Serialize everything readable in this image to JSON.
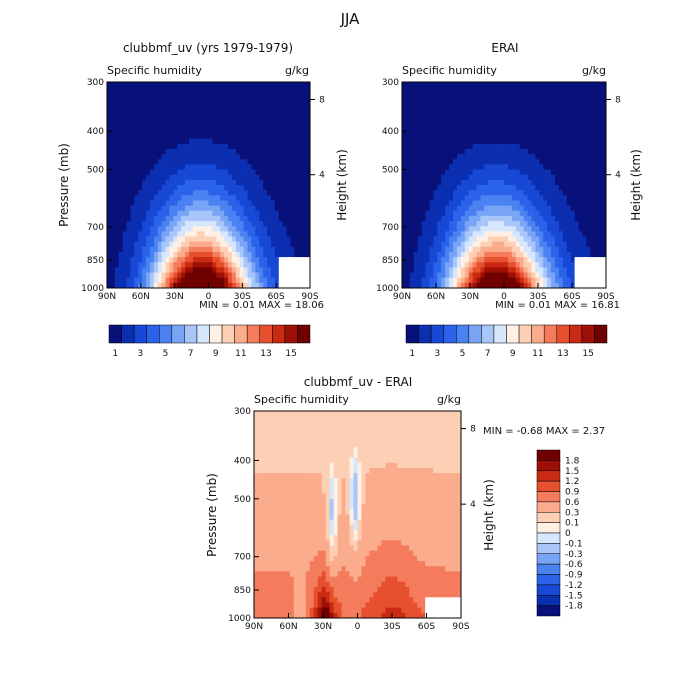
{
  "page_title": "JJA",
  "colors": {
    "model_scale": [
      "#08107a",
      "#0b2fb0",
      "#1749d6",
      "#2a62ea",
      "#4a82f2",
      "#7aa5f6",
      "#a9c6fa",
      "#d6e6fd",
      "#fff0e3",
      "#fdd0b6",
      "#fbac8d",
      "#f47c5c",
      "#e6502f",
      "#c82a12",
      "#9e1007",
      "#6e0000"
    ],
    "diff_scale": [
      "#08107a",
      "#0b2fb0",
      "#1749d6",
      "#2a62ea",
      "#4a82f2",
      "#7aa5f6",
      "#a9c6fa",
      "#d6e6fd",
      "#fff0e3",
      "#fdd0b6",
      "#fbac8d",
      "#f47c5c",
      "#e6502f",
      "#c82a12",
      "#9e1007",
      "#6e0000"
    ]
  },
  "chart_data": [
    {
      "type": "heatmap",
      "title": "clubbmf_uv (yrs 1979-1979)",
      "subtitle_left": "Specific humidity",
      "subtitle_right": "g/kg",
      "ylabel": "Pressure (mb)",
      "y2label": "Height (km)",
      "x_ticks": [
        "90N",
        "60N",
        "30N",
        "0",
        "30S",
        "60S",
        "90S"
      ],
      "x_values": [
        90,
        60,
        30,
        0,
        -30,
        -60,
        -90
      ],
      "y_ticks": [
        "300",
        "400",
        "500",
        "700",
        "850",
        "1000"
      ],
      "y_values": [
        300,
        400,
        500,
        700,
        850,
        1000
      ],
      "y2_ticks": [
        "8",
        "4"
      ],
      "ylim": [
        1000,
        300
      ],
      "xlim": [
        90,
        -90
      ],
      "stats": "MIN =    0.01   MAX =   18.06",
      "min": 0.01,
      "max": 18.06,
      "colorbar_labels": [
        "1",
        "3",
        "5",
        "7",
        "9",
        "11",
        "13",
        "15"
      ],
      "levels": [
        1,
        2,
        3,
        4,
        5,
        6,
        7,
        8,
        9,
        10,
        11,
        12,
        13,
        14,
        15
      ]
    },
    {
      "type": "heatmap",
      "title": "ERAI",
      "subtitle_left": "Specific humidity",
      "subtitle_right": "g/kg",
      "ylabel": "Pressure (mb)",
      "y2label": "Height (km)",
      "x_ticks": [
        "90N",
        "60N",
        "30N",
        "0",
        "30S",
        "60S",
        "90S"
      ],
      "x_values": [
        90,
        60,
        30,
        0,
        -30,
        -60,
        -90
      ],
      "y_ticks": [
        "300",
        "400",
        "500",
        "700",
        "850",
        "1000"
      ],
      "y_values": [
        300,
        400,
        500,
        700,
        850,
        1000
      ],
      "y2_ticks": [
        "8",
        "4"
      ],
      "ylim": [
        1000,
        300
      ],
      "xlim": [
        90,
        -90
      ],
      "stats": "MIN =    0.01   MAX =   16.81",
      "min": 0.01,
      "max": 16.81,
      "colorbar_labels": [
        "1",
        "3",
        "5",
        "7",
        "9",
        "11",
        "13",
        "15"
      ],
      "levels": [
        1,
        2,
        3,
        4,
        5,
        6,
        7,
        8,
        9,
        10,
        11,
        12,
        13,
        14,
        15
      ]
    },
    {
      "type": "heatmap",
      "title": "clubbmf_uv - ERAI",
      "subtitle_left": "Specific humidity",
      "subtitle_right": "g/kg",
      "ylabel": "Pressure (mb)",
      "y2label": "Height (km)",
      "x_ticks": [
        "90N",
        "60N",
        "30N",
        "0",
        "30S",
        "60S",
        "90S"
      ],
      "x_values": [
        90,
        60,
        30,
        0,
        -30,
        -60,
        -90
      ],
      "y_ticks": [
        "300",
        "400",
        "500",
        "700",
        "850",
        "1000"
      ],
      "y_values": [
        300,
        400,
        500,
        700,
        850,
        1000
      ],
      "y2_ticks": [
        "8",
        "4"
      ],
      "ylim": [
        1000,
        300
      ],
      "xlim": [
        90,
        -90
      ],
      "stats": "MIN =   -0.68   MAX =    2.37",
      "min": -0.68,
      "max": 2.37,
      "colorbar_labels": [
        "1.8",
        "1.5",
        "1.2",
        "0.9",
        "0.6",
        "0.3",
        "0.1",
        "0",
        "-0.1",
        "-0.3",
        "-0.6",
        "-0.9",
        "-1.2",
        "-1.5",
        "-1.8"
      ],
      "levels": [
        -1.8,
        -1.5,
        -1.2,
        -0.9,
        -0.6,
        -0.3,
        -0.1,
        0,
        0.1,
        0.3,
        0.6,
        0.9,
        1.2,
        1.5,
        1.8
      ]
    }
  ]
}
